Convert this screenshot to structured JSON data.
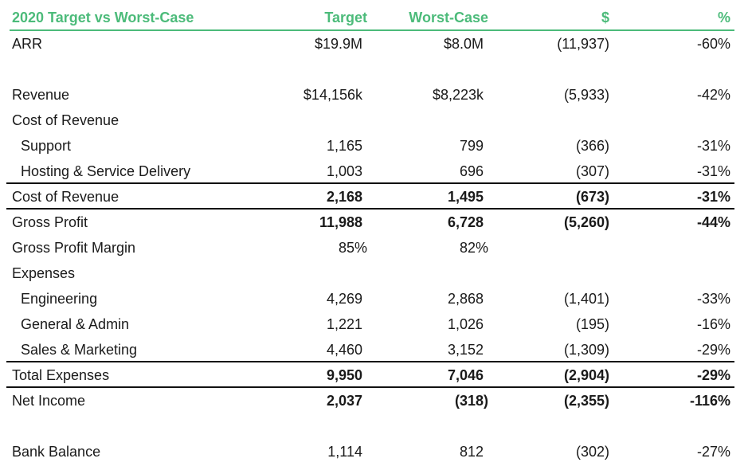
{
  "header": {
    "title": "2020 Target vs Worst-Case",
    "col_target": "Target",
    "col_worst": "Worst-Case",
    "col_dollar": "$",
    "col_pct": "%"
  },
  "colors": {
    "accent": "#4cbb7a",
    "text": "#1a1a1a"
  },
  "rows": [
    {
      "label": "ARR",
      "target": "$19.9M",
      "worst": "$8.0M",
      "dollar": "(11,937)",
      "pct": "-60%"
    },
    {
      "label": "Revenue",
      "target": "$14,156k",
      "worst": "$8,223k",
      "dollar": "(5,933)",
      "pct": "-42%"
    },
    {
      "label": "Cost of Revenue",
      "target": "",
      "worst": "",
      "dollar": "",
      "pct": ""
    },
    {
      "label": "Support",
      "target": "1,165",
      "worst": "799",
      "dollar": "(366)",
      "pct": "-31%"
    },
    {
      "label": "Hosting & Service Delivery",
      "target": "1,003",
      "worst": "696",
      "dollar": "(307)",
      "pct": "-31%"
    },
    {
      "label": "Cost of Revenue",
      "target": "2,168",
      "worst": "1,495",
      "dollar": "(673)",
      "pct": "-31%"
    },
    {
      "label": "Gross Profit",
      "target": "11,988",
      "worst": "6,728",
      "dollar": "(5,260)",
      "pct": "-44%"
    },
    {
      "label": "Gross Profit Margin",
      "target": "85%",
      "worst": "82%",
      "dollar": "",
      "pct": ""
    },
    {
      "label": "Expenses",
      "target": "",
      "worst": "",
      "dollar": "",
      "pct": ""
    },
    {
      "label": "Engineering",
      "target": "4,269",
      "worst": "2,868",
      "dollar": "(1,401)",
      "pct": "-33%"
    },
    {
      "label": "General & Admin",
      "target": "1,221",
      "worst": "1,026",
      "dollar": "(195)",
      "pct": "-16%"
    },
    {
      "label": "Sales & Marketing",
      "target": "4,460",
      "worst": "3,152",
      "dollar": "(1,309)",
      "pct": "-29%"
    },
    {
      "label": "Total Expenses",
      "target": "9,950",
      "worst": "7,046",
      "dollar": "(2,904)",
      "pct": "-29%"
    },
    {
      "label": "Net Income",
      "target": "2,037",
      "worst": "(318)",
      "dollar": "(2,355)",
      "pct": "-116%"
    },
    {
      "label": "Bank Balance",
      "target": "1,114",
      "worst": "812",
      "dollar": "(302)",
      "pct": "-27%"
    }
  ]
}
